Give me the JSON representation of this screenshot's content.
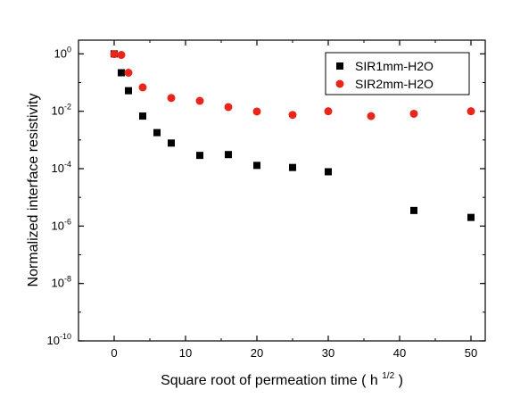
{
  "chart_data": {
    "type": "scatter",
    "title": "",
    "xlabel": "Square root of permeation time",
    "xlabel_unit_base": "h",
    "xlabel_unit_exp": "1/2",
    "ylabel": "Normalized interface resistivity",
    "xlim": [
      -5,
      52
    ],
    "ylim": [
      1e-10,
      3
    ],
    "yscale": "log",
    "x_ticks": [
      0,
      10,
      20,
      30,
      40,
      50
    ],
    "y_ticks": [
      {
        "base": "10",
        "exp": "0",
        "value": 1
      },
      {
        "base": "10",
        "exp": "-2",
        "value": 0.01
      },
      {
        "base": "10",
        "exp": "-4",
        "value": 0.0001
      },
      {
        "base": "10",
        "exp": "-6",
        "value": 1e-06
      },
      {
        "base": "10",
        "exp": "-8",
        "value": 1e-08
      },
      {
        "base": "10",
        "exp": "-10",
        "value": 1e-10
      }
    ],
    "legend_position": "top-right",
    "grid": false,
    "series": [
      {
        "name": "SIR1mm-H2O",
        "marker": "square",
        "color": "#000000",
        "points": [
          {
            "x": 0,
            "y": 1.0
          },
          {
            "x": 1,
            "y": 0.22
          },
          {
            "x": 2,
            "y": 0.052
          },
          {
            "x": 4,
            "y": 0.0068
          },
          {
            "x": 6,
            "y": 0.0018
          },
          {
            "x": 8,
            "y": 0.00078
          },
          {
            "x": 12,
            "y": 0.00029
          },
          {
            "x": 16,
            "y": 0.00031
          },
          {
            "x": 20,
            "y": 0.00013
          },
          {
            "x": 25,
            "y": 0.00011
          },
          {
            "x": 30,
            "y": 7.8e-05
          },
          {
            "x": 42,
            "y": 3.5e-06
          },
          {
            "x": 50,
            "y": 2e-06
          }
        ]
      },
      {
        "name": "SIR2mm-H2O",
        "marker": "circle",
        "color": "#e8261a",
        "points": [
          {
            "x": 0,
            "y": 0.98
          },
          {
            "x": 1,
            "y": 0.92
          },
          {
            "x": 2,
            "y": 0.22
          },
          {
            "x": 4,
            "y": 0.068
          },
          {
            "x": 8,
            "y": 0.029
          },
          {
            "x": 12,
            "y": 0.023
          },
          {
            "x": 16,
            "y": 0.014
          },
          {
            "x": 20,
            "y": 0.0098
          },
          {
            "x": 25,
            "y": 0.0075
          },
          {
            "x": 30,
            "y": 0.01
          },
          {
            "x": 36,
            "y": 0.0068
          },
          {
            "x": 42,
            "y": 0.0082
          },
          {
            "x": 50,
            "y": 0.01
          }
        ]
      }
    ]
  }
}
